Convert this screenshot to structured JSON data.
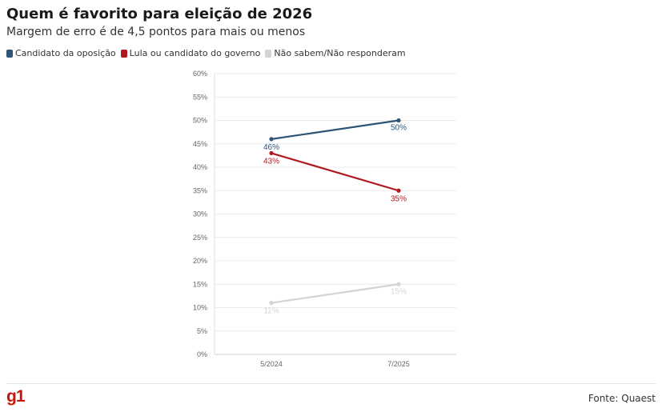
{
  "header": {
    "title": "Quem é favorito para eleição de 2026",
    "subtitle": "Margem de erro é de 4,5 pontos para mais ou menos"
  },
  "footer": {
    "logo": "g1",
    "source": "Fonte: Quaest"
  },
  "chart_data": {
    "type": "line",
    "title": "Quem é favorito para eleição de 2026",
    "subtitle": "Margem de erro é de 4,5 pontos para mais ou menos",
    "categories": [
      "5/2024",
      "7/2025"
    ],
    "ylim": [
      0,
      60
    ],
    "y_ticks": [
      "0%",
      "5%",
      "10%",
      "15%",
      "20%",
      "25%",
      "30%",
      "35%",
      "40%",
      "45%",
      "50%",
      "55%",
      "60%"
    ],
    "grid": true,
    "legend_position": "top-left",
    "series": [
      {
        "name": "Candidato da oposição",
        "values": [
          46,
          50
        ],
        "labels": [
          "46%",
          "50%"
        ],
        "color": "#2f5475"
      },
      {
        "name": "Lula ou candidato do governo",
        "values": [
          43,
          35
        ],
        "labels": [
          "43%",
          "35%"
        ],
        "color": "#b0191f"
      },
      {
        "name": "Não sabem/Não responderam",
        "values": [
          11,
          15
        ],
        "labels": [
          "11%",
          "15%"
        ],
        "color": "#d4d4d4"
      }
    ]
  }
}
